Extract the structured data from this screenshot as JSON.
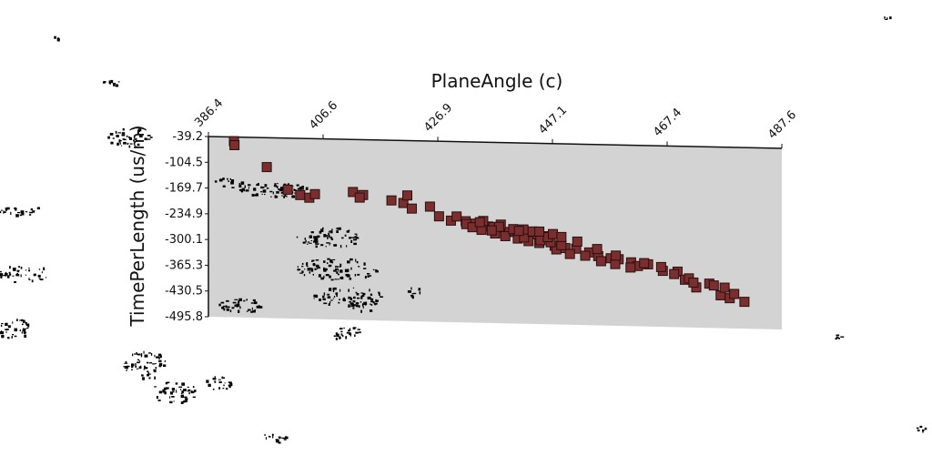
{
  "chart_data": {
    "type": "scatter",
    "xlabel": "PlaneAngle (c)",
    "ylabel": "TimePerLength  (us/m)",
    "xticks": [
      "386.4",
      "406.6",
      "426.9",
      "447.1",
      "467.4",
      "487.6"
    ],
    "yticks": [
      "-39.2",
      "-104.5",
      "-169.7",
      "-234.9",
      "-300.1",
      "-365.3",
      "-430.5",
      "-495.8"
    ],
    "xlim": [
      386.4,
      487.6
    ],
    "ylim": [
      -495.8,
      -39.2
    ],
    "grid": false,
    "legend": "none",
    "colors": {
      "marker": "#7a2e2e",
      "marker_edge": "#2a0f0f",
      "plot_bg": "#d3d3d3",
      "speckle": "#000000"
    },
    "points": [
      [
        390.9,
        -49.6
      ],
      [
        391.0,
        -59.7
      ],
      [
        396.7,
        -113.6
      ],
      [
        402.6,
        -182.7
      ],
      [
        404.2,
        -188.9
      ],
      [
        400.4,
        -169.7
      ],
      [
        405.2,
        -179.6
      ],
      [
        411.9,
        -172.2
      ],
      [
        413.7,
        -179.3
      ],
      [
        413.1,
        -186.0
      ],
      [
        418.7,
        -191.5
      ],
      [
        420.8,
        -197.4
      ],
      [
        421.5,
        -178.1
      ],
      [
        425.5,
        -205.2
      ],
      [
        422.3,
        -211.1
      ],
      [
        427.1,
        -229.4
      ],
      [
        429.2,
        -239.6
      ],
      [
        430.2,
        -228.8
      ],
      [
        431.8,
        -240.4
      ],
      [
        433.5,
        -245.9
      ],
      [
        435.8,
        -252.5
      ],
      [
        436.7,
        -253.6
      ],
      [
        437.9,
        -254.6
      ],
      [
        439.5,
        -265.2
      ],
      [
        440.5,
        -264.3
      ],
      [
        441.7,
        -264.7
      ],
      [
        442.7,
        -268.6
      ],
      [
        444.3,
        -269.9
      ],
      [
        445.9,
        -274.2
      ],
      [
        431.9,
        -247.6
      ],
      [
        433.0,
        -255.2
      ],
      [
        434.6,
        -261.4
      ],
      [
        437.0,
        -269.8
      ],
      [
        438.8,
        -276.1
      ],
      [
        441.0,
        -281.5
      ],
      [
        442.9,
        -287.5
      ],
      [
        444.8,
        -291.6
      ],
      [
        447.5,
        -297.8
      ],
      [
        449.4,
        -303.2
      ],
      [
        451.3,
        -304.2
      ],
      [
        453.6,
        -313.0
      ],
      [
        455.2,
        -321.8
      ],
      [
        457.4,
        -326.6
      ],
      [
        458.8,
        -328.7
      ],
      [
        461.0,
        -335.9
      ],
      [
        462.2,
        -344.8
      ],
      [
        464.0,
        -340.0
      ],
      [
        466.6,
        -355.8
      ],
      [
        469.2,
        -357.0
      ],
      [
        470.5,
        -377.1
      ],
      [
        472.5,
        -396.0
      ],
      [
        476.8,
        -414.7
      ],
      [
        478.4,
        -421.6
      ],
      [
        481.0,
        -430.0
      ],
      [
        447.8,
        -307.0
      ],
      [
        450.2,
        -317.9
      ],
      [
        452.9,
        -321.5
      ],
      [
        455.7,
        -334.5
      ],
      [
        458.2,
        -341.1
      ],
      [
        460.9,
        -349.0
      ],
      [
        442.1,
        -278.4
      ],
      [
        445.0,
        -284.6
      ],
      [
        446.8,
        -289.2
      ],
      [
        448.7,
        -296.1
      ],
      [
        434.9,
        -238.8
      ],
      [
        438.0,
        -247.1
      ],
      [
        440.2,
        -257.8
      ],
      [
        443.6,
        -262.8
      ],
      [
        446.3,
        -276.3
      ],
      [
        451.5,
        -286.1
      ],
      [
        455.0,
        -303.9
      ],
      [
        458.3,
        -319.6
      ],
      [
        463.3,
        -337.2
      ],
      [
        466.3,
        -346.2
      ],
      [
        468.6,
        -363.3
      ],
      [
        471.2,
        -373.5
      ],
      [
        474.8,
        -385.7
      ],
      [
        477.5,
        -395.1
      ],
      [
        479.2,
        -410.6
      ],
      [
        437.7,
        -252.9
      ],
      [
        436.4,
        -262.4
      ],
      [
        442.0,
        -258.2
      ],
      [
        444.8,
        -262.7
      ],
      [
        447.2,
        -268.3
      ],
      [
        448.7,
        -275.3
      ],
      [
        472.0,
        -383.8
      ],
      [
        475.6,
        -390.1
      ],
      [
        434.3,
        -242.1
      ],
      [
        441.2,
        -262.0
      ]
    ]
  }
}
